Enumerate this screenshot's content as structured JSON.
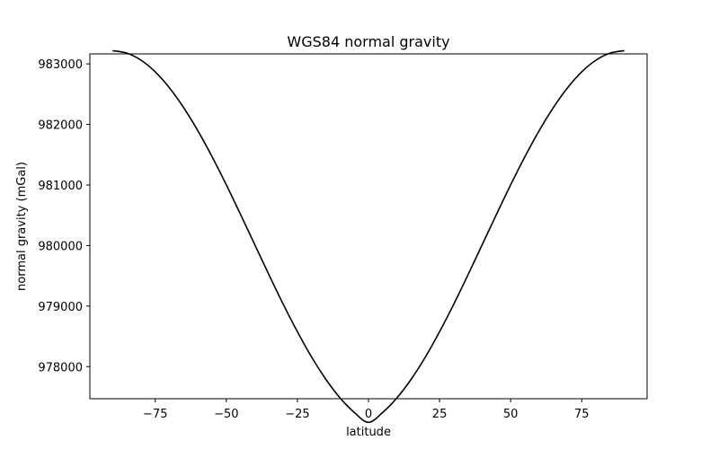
{
  "chart_data": {
    "type": "line",
    "title": "WGS84 normal gravity",
    "xlabel": "latitude",
    "ylabel": "normal gravity (mGal)",
    "xlim": [
      -98,
      98
    ],
    "ylim": [
      977470,
      983165
    ],
    "xticks": [
      -75,
      -50,
      -25,
      0,
      25,
      50,
      75
    ],
    "xtick_labels": [
      "−75",
      "−50",
      "−25",
      "0",
      "25",
      "50",
      "75"
    ],
    "yticks": [
      978000,
      979000,
      980000,
      981000,
      982000,
      983000
    ],
    "ytick_labels": [
      "978000",
      "979000",
      "980000",
      "981000",
      "982000",
      "983000"
    ],
    "grid": false,
    "series": [
      {
        "color": "#000000",
        "x": [
          -90,
          -85,
          -80,
          -75,
          -70,
          -65,
          -60,
          -55,
          -50,
          -45,
          -40,
          -35,
          -30,
          -25,
          -20,
          -15,
          -10,
          -5,
          0,
          5,
          10,
          15,
          20,
          25,
          30,
          35,
          40,
          45,
          50,
          55,
          60,
          65,
          70,
          75,
          80,
          85,
          90
        ],
        "y": [
          983218,
          983178,
          983061,
          982868,
          982604,
          982277,
          981894,
          981465,
          981001,
          980513,
          980014,
          979516,
          979032,
          978576,
          978158,
          977791,
          977483,
          977244,
          977080,
          977244,
          977483,
          977791,
          978158,
          978576,
          979032,
          979516,
          980014,
          980513,
          981001,
          981465,
          981894,
          982277,
          982604,
          982868,
          983061,
          983178,
          983218
        ]
      }
    ]
  }
}
